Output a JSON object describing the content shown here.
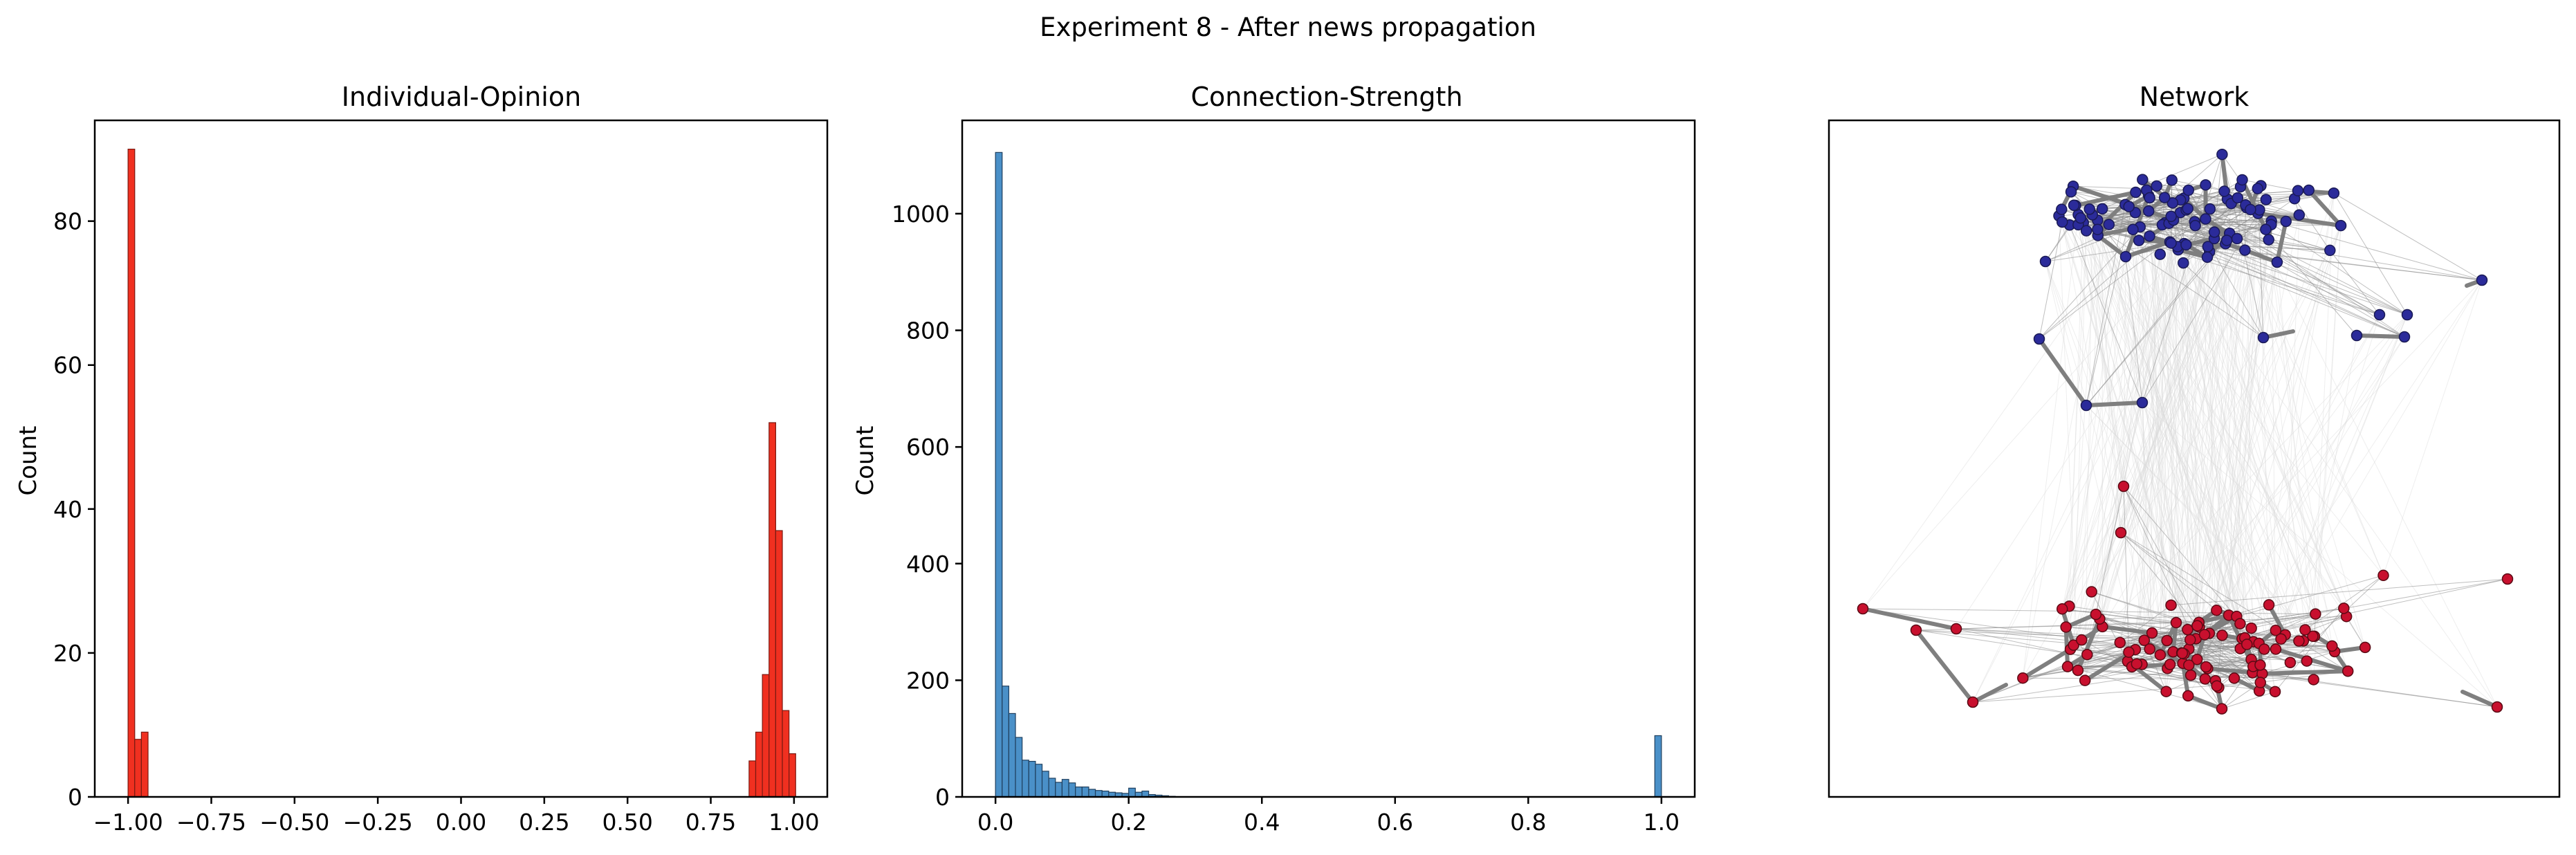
{
  "figure": {
    "suptitle": "Experiment 8 - After news propagation"
  },
  "chart_data": [
    {
      "type": "bar",
      "title": "Individual-Opinion",
      "xlabel": "",
      "ylabel": "Count",
      "xlim": [
        -1.1,
        1.1
      ],
      "ylim": [
        0,
        94
      ],
      "xticks": [
        -1.0,
        -0.75,
        -0.5,
        -0.25,
        0.0,
        0.25,
        0.5,
        0.75,
        1.0
      ],
      "xtick_labels": [
        "−1.00",
        "−0.75",
        "−0.50",
        "−0.25",
        "0.00",
        "0.25",
        "0.50",
        "0.75",
        "1.00"
      ],
      "yticks": [
        0,
        20,
        40,
        60,
        80
      ],
      "ytick_labels": [
        "0",
        "20",
        "40",
        "60",
        "80"
      ],
      "color": "#f03020",
      "edge_color": "#7a1a12",
      "bins": [
        {
          "x0": -1.0,
          "x1": -0.98,
          "count": 90
        },
        {
          "x0": -0.98,
          "x1": -0.96,
          "count": 8
        },
        {
          "x0": -0.96,
          "x1": -0.94,
          "count": 9
        },
        {
          "x0": 0.865,
          "x1": 0.885,
          "count": 5
        },
        {
          "x0": 0.885,
          "x1": 0.905,
          "count": 9
        },
        {
          "x0": 0.905,
          "x1": 0.925,
          "count": 17
        },
        {
          "x0": 0.925,
          "x1": 0.945,
          "count": 52
        },
        {
          "x0": 0.945,
          "x1": 0.965,
          "count": 37
        },
        {
          "x0": 0.965,
          "x1": 0.985,
          "count": 12
        },
        {
          "x0": 0.985,
          "x1": 1.005,
          "count": 6
        }
      ]
    },
    {
      "type": "bar",
      "title": "Connection-Strength",
      "xlabel": "",
      "ylabel": "Count",
      "xlim": [
        -0.05,
        1.05
      ],
      "ylim": [
        0,
        1160
      ],
      "xticks": [
        0.0,
        0.2,
        0.4,
        0.6,
        0.8,
        1.0
      ],
      "xtick_labels": [
        "0.0",
        "0.2",
        "0.4",
        "0.6",
        "0.8",
        "1.0"
      ],
      "yticks": [
        0,
        200,
        400,
        600,
        800,
        1000
      ],
      "ytick_labels": [
        "0",
        "200",
        "400",
        "600",
        "800",
        "1000"
      ],
      "color": "#4a90c8",
      "edge_color": "#1f3f5e",
      "bin_width": 0.01,
      "bin_start": 0.0,
      "counts": [
        1105,
        190,
        143,
        102,
        63,
        61,
        56,
        44,
        32,
        25,
        30,
        24,
        17,
        17,
        13,
        11,
        10,
        8,
        7,
        6,
        15,
        8,
        10,
        4,
        3,
        2,
        1
      ],
      "extra_bins": [
        {
          "x0": 0.99,
          "x1": 1.0,
          "count": 105
        }
      ]
    },
    {
      "type": "network",
      "title": "Network",
      "groups": [
        {
          "name": "",
          "color": "#2b2b9a",
          "edge": "#1a1a55"
        },
        {
          "name": "",
          "color": "#c8102e",
          "edge": "#5a0a14"
        }
      ],
      "strong_edge_color": "#7f7f7f",
      "weak_edge_color": "#d9d9d9"
    }
  ]
}
